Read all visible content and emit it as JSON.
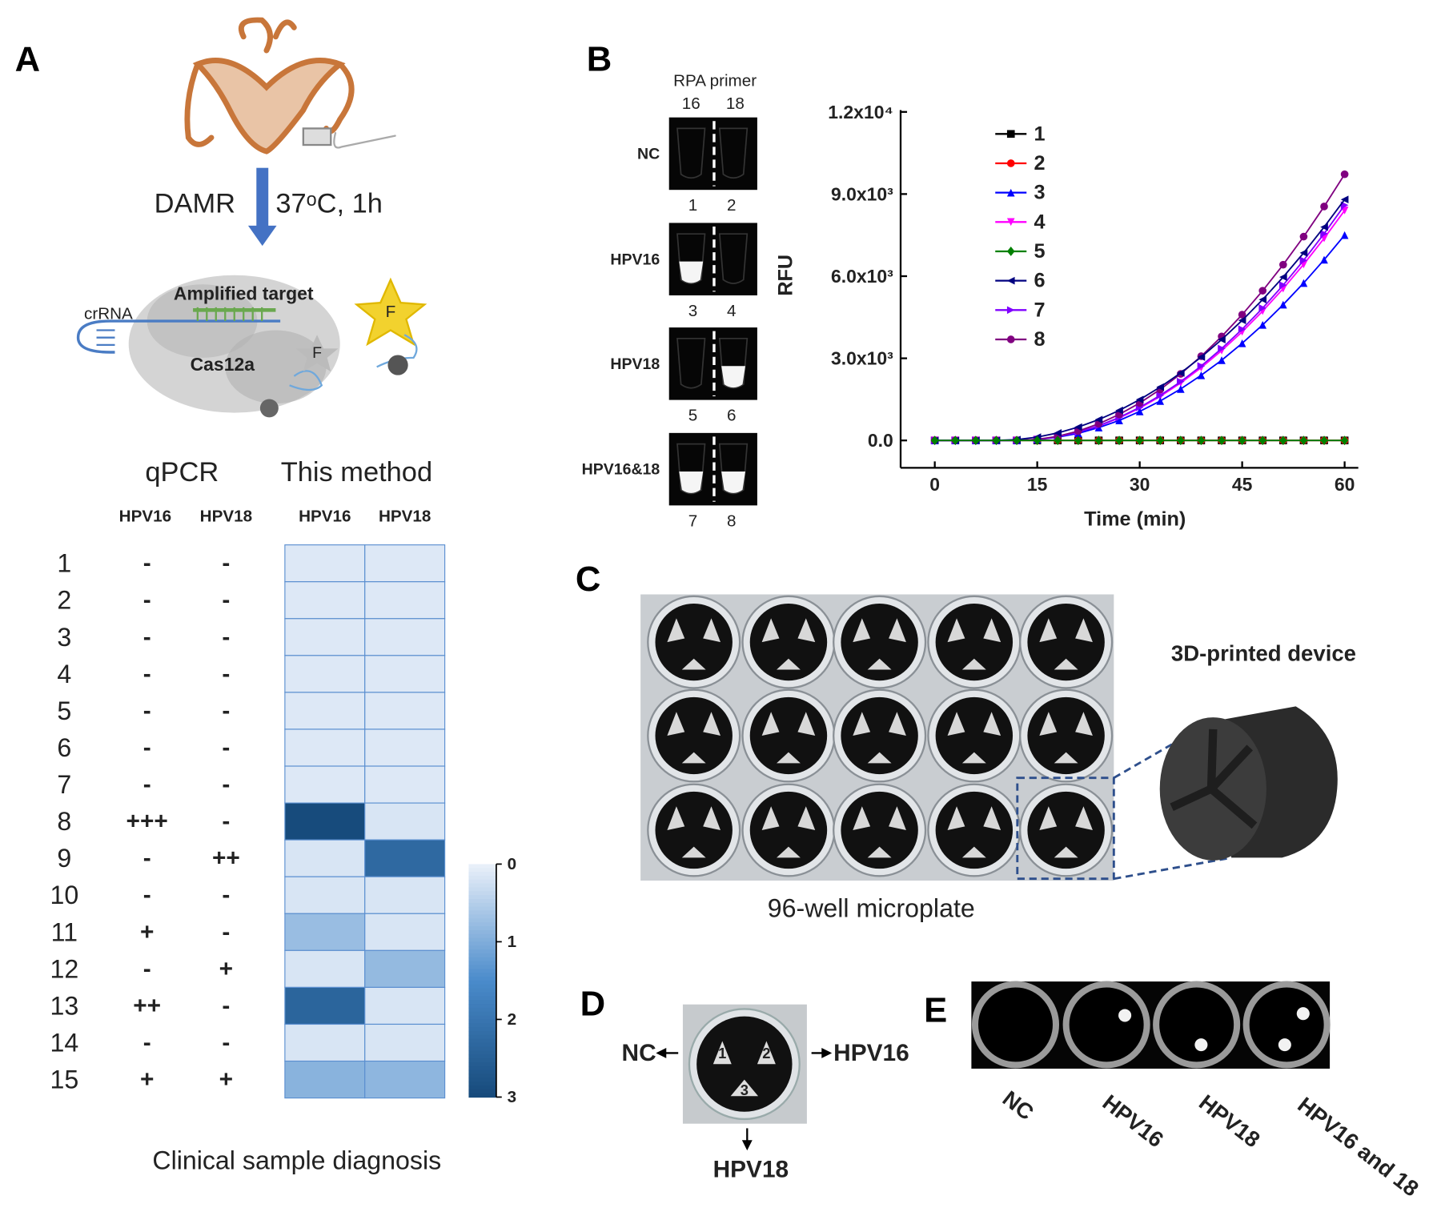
{
  "figure": {
    "panel_labels": [
      "A",
      "B",
      "C",
      "D",
      "E"
    ],
    "panel_a": {
      "method": "DAMR",
      "condition": "37ᵒC, 1h",
      "crrna": "crRNA",
      "target": "Amplified target",
      "enzyme": "Cas12a",
      "reporter": "F",
      "free_reporter": "F",
      "group_headers": [
        "qPCR",
        "This method"
      ],
      "qpcr_columns": [
        "HPV16",
        "HPV18"
      ],
      "qpcr_results": [
        [
          "-",
          "-"
        ],
        [
          "-",
          "-"
        ],
        [
          "-",
          "-"
        ],
        [
          "-",
          "-"
        ],
        [
          "-",
          "-"
        ],
        [
          "-",
          "-"
        ],
        [
          "-",
          "-"
        ],
        [
          "+++",
          "-"
        ],
        [
          "-",
          "++"
        ],
        [
          "-",
          "-"
        ],
        [
          "+",
          "-"
        ],
        [
          "-",
          "+"
        ],
        [
          "++",
          "-"
        ],
        [
          "-",
          "-"
        ],
        [
          "+",
          "+"
        ]
      ],
      "caption": "Clinical sample diagnosis"
    },
    "panel_b": {
      "gel_title": "RPA primer",
      "gel_columns": [
        "16",
        "18"
      ],
      "gel_rows": [
        "NC",
        "HPV16",
        "HPV18",
        "HPV16&18"
      ],
      "lanes": [
        [
          "1",
          "2"
        ],
        [
          "3",
          "4"
        ],
        [
          "5",
          "6"
        ],
        [
          "7",
          "8"
        ]
      ]
    },
    "panel_c": {
      "device": "3D-printed device",
      "plate": "96-well microplate"
    },
    "panel_d": {
      "wells": [
        "1",
        "2",
        "3"
      ],
      "left": "NC",
      "right": "HPV16",
      "bottom": "HPV18"
    },
    "panel_e": {
      "labels": [
        "NC",
        "HPV16",
        "HPV18",
        "HPV16 and 18"
      ]
    }
  },
  "chart_data": [
    {
      "type": "heatmap",
      "categories": [
        "1",
        "2",
        "3",
        "4",
        "5",
        "6",
        "7",
        "8",
        "9",
        "10",
        "11",
        "12",
        "13",
        "14",
        "15"
      ],
      "series": [
        {
          "name": "HPV16",
          "values": [
            0.1,
            0.1,
            0.1,
            0.1,
            0.1,
            0.1,
            0.1,
            3.0,
            0.15,
            0.15,
            0.75,
            0.15,
            2.4,
            0.15,
            0.9
          ]
        },
        {
          "name": "HPV18",
          "values": [
            0.1,
            0.1,
            0.1,
            0.1,
            0.1,
            0.1,
            0.1,
            0.15,
            2.3,
            0.15,
            0.15,
            0.8,
            0.15,
            0.15,
            0.85
          ]
        }
      ],
      "zlim": [
        0,
        3
      ],
      "zticks": [
        0,
        1,
        2,
        3
      ],
      "colormap": [
        "#e8eff9",
        "#4a8bcb",
        "#174b7c"
      ]
    },
    {
      "type": "line",
      "ylabel": "RFU",
      "xlabel": "Time (min)",
      "x": [
        0,
        3,
        6,
        9,
        12,
        15,
        18,
        21,
        24,
        27,
        30,
        33,
        36,
        39,
        42,
        45,
        48,
        51,
        54,
        57,
        60
      ],
      "xlim": [
        -5,
        62
      ],
      "xticks": [
        0,
        15,
        30,
        45,
        60
      ],
      "ylim": [
        -1000,
        12000
      ],
      "yticks": [
        {
          "value": 0,
          "label": "0.0"
        },
        {
          "value": 3000,
          "label": "3.0x10³"
        },
        {
          "value": 6000,
          "label": "6.0x10³"
        },
        {
          "value": 9000,
          "label": "9.0x10³"
        },
        {
          "value": 12000,
          "label": "1.2x10⁴"
        }
      ],
      "legend": "upper-left",
      "series": [
        {
          "name": "1",
          "color": "#000000",
          "marker": "square",
          "values": [
            0,
            0,
            0,
            0,
            0,
            0,
            0,
            0,
            0,
            0,
            0,
            0,
            0,
            0,
            0,
            0,
            0,
            0,
            0,
            0,
            0
          ]
        },
        {
          "name": "2",
          "color": "#ff0000",
          "marker": "circle",
          "values": [
            0,
            0,
            0,
            0,
            0,
            0,
            0,
            0,
            0,
            0,
            0,
            0,
            0,
            0,
            0,
            0,
            0,
            0,
            0,
            0,
            0
          ]
        },
        {
          "name": "3",
          "color": "#0000ff",
          "marker": "triangle-up",
          "values": [
            0,
            0,
            0,
            0,
            0,
            30,
            120,
            260,
            470,
            730,
            1060,
            1440,
            1880,
            2380,
            2930,
            3550,
            4220,
            4960,
            5750,
            6600,
            7500
          ]
        },
        {
          "name": "4",
          "color": "#ff00ff",
          "marker": "triangle-down",
          "values": [
            0,
            0,
            0,
            0,
            0,
            33,
            131,
            295,
            525,
            820,
            1181,
            1608,
            2100,
            2658,
            3281,
            3970,
            4725,
            5545,
            6431,
            7383,
            8400
          ]
        },
        {
          "name": "5",
          "color": "#008000",
          "marker": "diamond",
          "values": [
            0,
            0,
            0,
            0,
            0,
            0,
            0,
            0,
            0,
            0,
            0,
            0,
            0,
            0,
            0,
            0,
            0,
            0,
            0,
            0,
            0
          ]
        },
        {
          "name": "6",
          "color": "#000080",
          "marker": "triangle-left",
          "values": [
            0,
            0,
            0,
            0,
            30,
            122,
            274,
            487,
            761,
            1096,
            1492,
            1949,
            2466,
            3045,
            3684,
            4385,
            5146,
            5968,
            6851,
            7795,
            8800
          ]
        },
        {
          "name": "7",
          "color": "#8000ff",
          "marker": "triangle-right",
          "values": [
            0,
            0,
            0,
            0,
            0,
            34,
            134,
            302,
            537,
            839,
            1208,
            1645,
            2148,
            2719,
            3357,
            4062,
            4834,
            5673,
            6579,
            7553,
            8594
          ]
        },
        {
          "name": "8",
          "color": "#800080",
          "marker": "circle",
          "values": [
            0,
            0,
            0,
            0,
            0,
            38,
            152,
            342,
            608,
            950,
            1367,
            1861,
            2431,
            3076,
            3798,
            4595,
            5469,
            6418,
            7444,
            8545,
            9722
          ]
        }
      ]
    }
  ]
}
